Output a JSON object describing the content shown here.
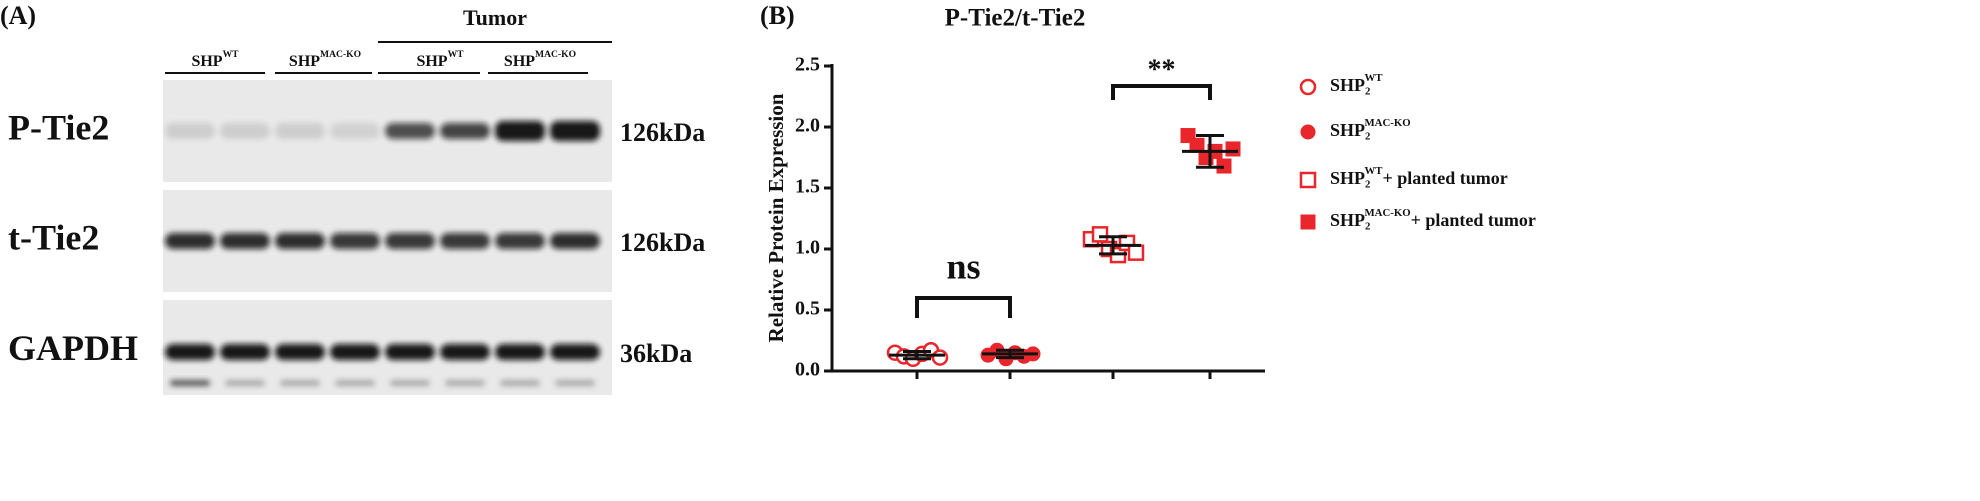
{
  "panel_a": {
    "label": "(A)",
    "group_header": "Tumor",
    "lanes": [
      {
        "base": "SHP",
        "sup": "WT"
      },
      {
        "base": "SHP",
        "sup": "MAC-KO"
      },
      {
        "base": "SHP",
        "sup": "WT"
      },
      {
        "base": "SHP",
        "sup": "MAC-KO"
      }
    ],
    "rows": [
      {
        "label": "P-Tie2",
        "size": "126kDa"
      },
      {
        "label": "t-Tie2",
        "size": "126kDa"
      },
      {
        "label": "GAPDH",
        "size": "36kDa"
      }
    ]
  },
  "chart_data": {
    "type": "scatter",
    "panel_label": "(B)",
    "title": "P-Tie2/t-Tie2",
    "y_label": "Relative Protein Expression",
    "ylim": [
      0,
      2.5
    ],
    "yticks": [
      {
        "value": 0,
        "label": "0.0"
      },
      0.5,
      {
        "value": 1,
        "label": "1.0"
      },
      1.5,
      {
        "value": 2,
        "label": "2.0"
      },
      2.5
    ],
    "series": [
      {
        "name": {
          "base": "SHP",
          "sub": "2",
          "sup": "WT"
        },
        "color": "#e8262b",
        "marker": "open-circle",
        "values": [
          0.15,
          0.12,
          0.1,
          0.14,
          0.17,
          0.11
        ],
        "mean": 0.13,
        "error": 0.03
      },
      {
        "name": {
          "base": "SHP",
          "sub": "2",
          "sup": "MAC-KO"
        },
        "color": "#e8262b",
        "marker": "filled-circle",
        "values": [
          0.13,
          0.17,
          0.1,
          0.15,
          0.12,
          0.14
        ],
        "mean": 0.14,
        "error": 0.03
      },
      {
        "name": {
          "base": "SHP",
          "sub": "2",
          "sup": "WT",
          "suffix": "+ planted tumor"
        },
        "color": "#e8262b",
        "marker": "open-square",
        "values": [
          1.08,
          1.12,
          1.0,
          0.95,
          1.05,
          0.97
        ],
        "mean": 1.03,
        "error": 0.07
      },
      {
        "name": {
          "base": "SHP",
          "sub": "2",
          "sup": "MAC-KO",
          "suffix": "+ planted tumor"
        },
        "color": "#e8262b",
        "marker": "filled-square",
        "values": [
          1.93,
          1.85,
          1.75,
          1.8,
          1.68,
          1.82
        ],
        "mean": 1.8,
        "error": 0.13
      }
    ],
    "annotations": [
      "ns",
      "**"
    ]
  }
}
